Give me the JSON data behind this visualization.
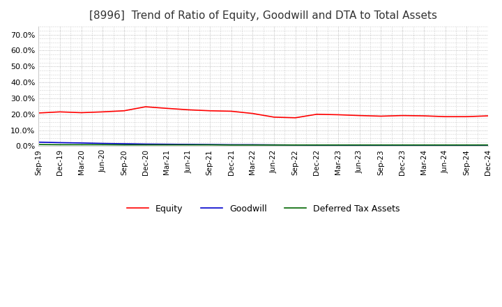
{
  "title": "[8996]  Trend of Ratio of Equity, Goodwill and DTA to Total Assets",
  "title_fontsize": 11,
  "ylim": [
    0.0,
    0.75
  ],
  "yticks": [
    0.0,
    0.1,
    0.2,
    0.3,
    0.4,
    0.5,
    0.6,
    0.7
  ],
  "ytick_labels": [
    "0.0%",
    "10.0%",
    "20.0%",
    "30.0%",
    "40.0%",
    "50.0%",
    "60.0%",
    "70.0%"
  ],
  "x_labels": [
    "Sep-19",
    "Dec-19",
    "Mar-20",
    "Jun-20",
    "Sep-20",
    "Dec-20",
    "Mar-21",
    "Jun-21",
    "Sep-21",
    "Dec-21",
    "Mar-22",
    "Jun-22",
    "Sep-22",
    "Dec-22",
    "Mar-23",
    "Jun-23",
    "Sep-23",
    "Dec-23",
    "Mar-24",
    "Jun-24",
    "Sep-24",
    "Dec-24"
  ],
  "equity": [
    0.208,
    0.215,
    0.21,
    0.215,
    0.222,
    0.247,
    0.237,
    0.228,
    0.222,
    0.219,
    0.205,
    0.182,
    0.178,
    0.2,
    0.197,
    0.192,
    0.188,
    0.192,
    0.19,
    0.185,
    0.185,
    0.19
  ],
  "goodwill": [
    0.025,
    0.022,
    0.02,
    0.017,
    0.015,
    0.013,
    0.012,
    0.011,
    0.01,
    0.009,
    0.009,
    0.008,
    0.007,
    0.006,
    0.006,
    0.005,
    0.005,
    0.004,
    0.004,
    0.004,
    0.005,
    0.006
  ],
  "dta": [
    0.01,
    0.009,
    0.009,
    0.009,
    0.008,
    0.008,
    0.008,
    0.008,
    0.008,
    0.007,
    0.007,
    0.007,
    0.007,
    0.007,
    0.007,
    0.007,
    0.007,
    0.007,
    0.007,
    0.007,
    0.007,
    0.007
  ],
  "equity_color": "#ff0000",
  "goodwill_color": "#0000cc",
  "dta_color": "#006600",
  "background_color": "#ffffff",
  "grid_color": "#aaaaaa",
  "legend_labels": [
    "Equity",
    "Goodwill",
    "Deferred Tax Assets"
  ]
}
